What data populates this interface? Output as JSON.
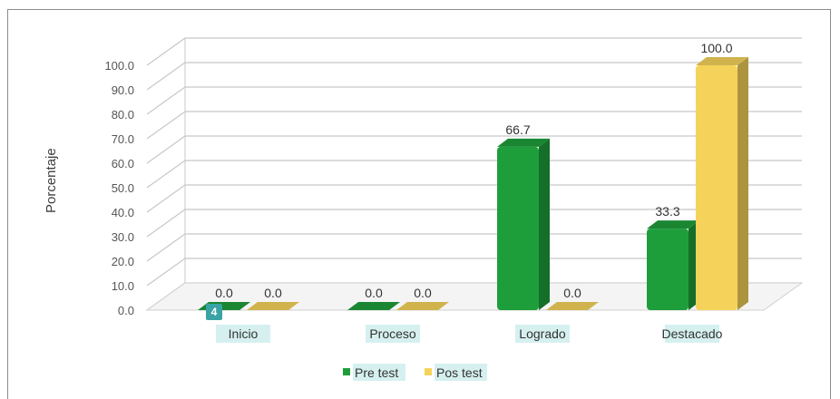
{
  "chart_data": {
    "type": "bar",
    "ylabel": "Porcentaje",
    "ylim": [
      0,
      100
    ],
    "yticks": [
      "0.0",
      "10.0",
      "20.0",
      "30.0",
      "40.0",
      "50.0",
      "60.0",
      "70.0",
      "80.0",
      "90.0",
      "100.0"
    ],
    "categories": [
      "Inicio",
      "Proceso",
      "Logrado",
      "Destacado"
    ],
    "series": [
      {
        "name": "Pre test",
        "values": [
          0.0,
          0.0,
          66.7,
          33.3
        ],
        "labels": [
          "0.0",
          "0.0",
          "66.7",
          "33.3"
        ],
        "color": "#1e9e3b"
      },
      {
        "name": "Pos test",
        "values": [
          0.0,
          0.0,
          0.0,
          100.0
        ],
        "labels": [
          "0.0",
          "0.0",
          "0.0",
          "100.0"
        ],
        "color": "#f5d35a"
      }
    ],
    "grid": true,
    "legend": "bottom",
    "three_d": true
  },
  "badge": {
    "text": "4"
  }
}
